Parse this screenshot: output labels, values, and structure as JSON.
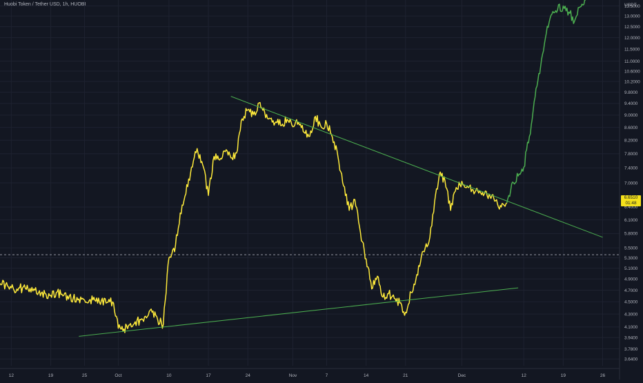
{
  "chart_data": {
    "type": "line",
    "title": "Huobi Token / Tether USD, 1h, HUOBI",
    "currency_label": "USDT",
    "y_scale": "log",
    "ylim": [
      3.55,
      13.8
    ],
    "xlim": [
      "2021-09-10",
      "2021-12-29"
    ],
    "grid": true,
    "y_ticks": [
      "13.5000",
      "13.0000",
      "12.5000",
      "12.0000",
      "11.5000",
      "11.0000",
      "10.6000",
      "10.2000",
      "9.8000",
      "9.4000",
      "9.0000",
      "8.6000",
      "8.2000",
      "7.8000",
      "7.4000",
      "7.0000",
      "6.4000",
      "6.1000",
      "5.8000",
      "5.5000",
      "5.3000",
      "5.1000",
      "4.9000",
      "4.7000",
      "4.5000",
      "4.3000",
      "4.1000",
      "3.9400",
      "3.7800",
      "3.6400"
    ],
    "x_ticks": [
      {
        "label": "12",
        "date": "2021-09-12"
      },
      {
        "label": "19",
        "date": "2021-09-19"
      },
      {
        "label": "25",
        "date": "2021-09-25"
      },
      {
        "label": "Oct",
        "date": "2021-10-01"
      },
      {
        "label": "10",
        "date": "2021-10-10"
      },
      {
        "label": "17",
        "date": "2021-10-17"
      },
      {
        "label": "24",
        "date": "2021-10-24"
      },
      {
        "label": "Nov",
        "date": "2021-11-01"
      },
      {
        "label": "7",
        "date": "2021-11-07"
      },
      {
        "label": "14",
        "date": "2021-11-14"
      },
      {
        "label": "21",
        "date": "2021-11-21"
      },
      {
        "label": "Dec",
        "date": "2021-12-01"
      },
      {
        "label": "12",
        "date": "2021-12-12"
      },
      {
        "label": "19",
        "date": "2021-12-19"
      },
      {
        "label": "26",
        "date": "2021-12-26"
      }
    ],
    "series": [
      {
        "color": "#ffeb3b",
        "points": [
          [
            "2021-09-10",
            4.82
          ],
          [
            "2021-09-11",
            4.8
          ],
          [
            "2021-09-12",
            4.74
          ],
          [
            "2021-09-13",
            4.72
          ],
          [
            "2021-09-14",
            4.74
          ],
          [
            "2021-09-15",
            4.71
          ],
          [
            "2021-09-16",
            4.72
          ],
          [
            "2021-09-17",
            4.69
          ],
          [
            "2021-09-18",
            4.64
          ],
          [
            "2021-09-19",
            4.61
          ],
          [
            "2021-09-20",
            4.66
          ],
          [
            "2021-09-21",
            4.63
          ],
          [
            "2021-09-22",
            4.6
          ],
          [
            "2021-09-23",
            4.56
          ],
          [
            "2021-09-24",
            4.55
          ],
          [
            "2021-09-25",
            4.53
          ],
          [
            "2021-09-26",
            4.54
          ],
          [
            "2021-09-27",
            4.51
          ],
          [
            "2021-09-28",
            4.52
          ],
          [
            "2021-09-29",
            4.49
          ],
          [
            "2021-09-30",
            4.5
          ],
          [
            "2021-10-01",
            4.08
          ],
          [
            "2021-10-02",
            4.07
          ],
          [
            "2021-10-03",
            4.13
          ],
          [
            "2021-10-04",
            4.18
          ],
          [
            "2021-10-05",
            4.21
          ],
          [
            "2021-10-06",
            4.24
          ],
          [
            "2021-10-07",
            4.33
          ],
          [
            "2021-10-08",
            4.21
          ],
          [
            "2021-10-09",
            4.14
          ],
          [
            "2021-10-10",
            5.3
          ],
          [
            "2021-10-11",
            5.42
          ],
          [
            "2021-10-12",
            6.26
          ],
          [
            "2021-10-13",
            6.72
          ],
          [
            "2021-10-14",
            7.42
          ],
          [
            "2021-10-15",
            7.95
          ],
          [
            "2021-10-16",
            7.48
          ],
          [
            "2021-10-17",
            6.68
          ],
          [
            "2021-10-18",
            7.72
          ],
          [
            "2021-10-19",
            7.62
          ],
          [
            "2021-10-20",
            7.86
          ],
          [
            "2021-10-21",
            7.68
          ],
          [
            "2021-10-22",
            7.82
          ],
          [
            "2021-10-23",
            8.88
          ],
          [
            "2021-10-24",
            9.18
          ],
          [
            "2021-10-25",
            9.02
          ],
          [
            "2021-10-26",
            9.42
          ],
          [
            "2021-10-27",
            9.08
          ],
          [
            "2021-10-28",
            8.88
          ],
          [
            "2021-10-29",
            8.78
          ],
          [
            "2021-10-30",
            8.66
          ],
          [
            "2021-10-31",
            8.86
          ],
          [
            "2021-11-01",
            8.62
          ],
          [
            "2021-11-02",
            8.76
          ],
          [
            "2021-11-03",
            8.44
          ],
          [
            "2021-11-04",
            8.32
          ],
          [
            "2021-11-05",
            8.96
          ],
          [
            "2021-11-06",
            8.62
          ],
          [
            "2021-11-07",
            8.72
          ],
          [
            "2021-11-08",
            8.3
          ],
          [
            "2021-11-09",
            7.72
          ],
          [
            "2021-11-10",
            6.92
          ],
          [
            "2021-11-11",
            6.32
          ],
          [
            "2021-11-12",
            6.58
          ],
          [
            "2021-11-13",
            5.82
          ],
          [
            "2021-11-14",
            5.28
          ],
          [
            "2021-11-15",
            4.72
          ],
          [
            "2021-11-16",
            4.95
          ],
          [
            "2021-11-17",
            4.58
          ],
          [
            "2021-11-18",
            4.64
          ],
          [
            "2021-11-19",
            4.56
          ],
          [
            "2021-11-20",
            4.48
          ],
          [
            "2021-11-21",
            4.33
          ],
          [
            "2021-11-22",
            4.66
          ],
          [
            "2021-11-23",
            4.98
          ],
          [
            "2021-11-24",
            5.42
          ],
          [
            "2021-11-25",
            5.56
          ],
          [
            "2021-11-26",
            6.28
          ],
          [
            "2021-11-27",
            7.22
          ],
          [
            "2021-11-28",
            7.06
          ],
          [
            "2021-11-29",
            6.32
          ],
          [
            "2021-11-30",
            6.88
          ],
          [
            "2021-12-01",
            7.04
          ],
          [
            "2021-12-02",
            6.92
          ],
          [
            "2021-12-03",
            6.82
          ],
          [
            "2021-12-04",
            6.74
          ],
          [
            "2021-12-05",
            6.72
          ],
          [
            "2021-12-06",
            6.66
          ],
          [
            "2021-12-07",
            6.55
          ],
          [
            "2021-12-08",
            6.4
          ],
          [
            "2021-12-09",
            6.5
          ]
        ]
      },
      {
        "color": "#4caf50",
        "points": [
          [
            "2021-12-09",
            6.5
          ],
          [
            "2021-12-10",
            7.02
          ],
          [
            "2021-12-11",
            7.18
          ],
          [
            "2021-12-12",
            7.42
          ],
          [
            "2021-12-13",
            8.32
          ],
          [
            "2021-12-14",
            9.62
          ],
          [
            "2021-12-15",
            10.8
          ],
          [
            "2021-12-16",
            12.2
          ],
          [
            "2021-12-17",
            13.1
          ],
          [
            "2021-12-18",
            13.3
          ],
          [
            "2021-12-19",
            13.5
          ],
          [
            "2021-12-20",
            13.2
          ],
          [
            "2021-12-21",
            12.75
          ],
          [
            "2021-12-22",
            13.45
          ],
          [
            "2021-12-23",
            13.8
          ]
        ]
      }
    ],
    "annotations": [
      {
        "type": "trendline",
        "color": "#4caf50",
        "from": [
          "2021-10-21",
          9.65
        ],
        "to": [
          "2021-12-26",
          5.72
        ]
      },
      {
        "type": "trendline",
        "color": "#4caf50",
        "from": [
          "2021-09-24",
          3.96
        ],
        "to": [
          "2021-12-11",
          4.74
        ]
      },
      {
        "type": "hline",
        "style": "dashed",
        "value": 5.36
      }
    ],
    "last_price": {
      "value": "6.6510",
      "countdown": "01:48"
    }
  }
}
